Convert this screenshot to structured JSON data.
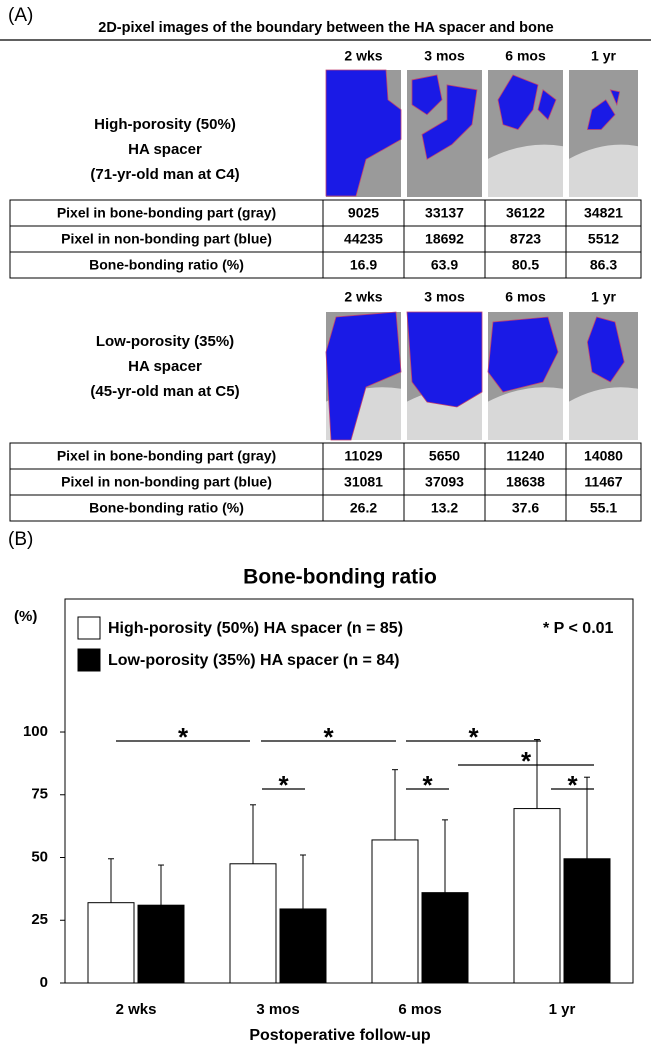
{
  "panel_a": {
    "label": "(A)",
    "title": "2D-pixel images of the boundary between the HA spacer and bone",
    "groups": [
      {
        "columns": [
          "2 wks",
          "3 mos",
          "6 mos",
          "1 yr"
        ],
        "spacer": [
          "High-porosity (50%)",
          "HA spacer",
          "(71-yr-old man at C4)"
        ],
        "rows": [
          [
            "Pixel in bone-bonding part (gray)",
            9025,
            33137,
            36122,
            34821
          ],
          [
            "Pixel in non-bonding part (blue)",
            44235,
            18692,
            8723,
            5512
          ],
          [
            "Bone-bonding ratio (%)",
            16.9,
            63.9,
            80.5,
            86.3
          ]
        ]
      },
      {
        "columns": [
          "2 wks",
          "3 mos",
          "6 mos",
          "1 yr"
        ],
        "spacer": [
          "Low-porosity (35%)",
          "HA spacer",
          "(45-yr-old man at C5)"
        ],
        "rows": [
          [
            "Pixel in bone-bonding part (gray)",
            11029,
            5650,
            11240,
            14080
          ],
          [
            "Pixel in non-bonding part (blue)",
            31081,
            37093,
            18638,
            11467
          ],
          [
            "Bone-bonding ratio (%)",
            26.2,
            13.2,
            37.6,
            55.1
          ]
        ]
      }
    ]
  },
  "chart_data": {
    "type": "bar",
    "label": "(B)",
    "title": "Bone-bonding ratio",
    "ylabel": "(%)",
    "xlabel": "Postoperative follow-up",
    "categories": [
      "2 wks",
      "3 mos",
      "6 mos",
      "1 yr"
    ],
    "series": [
      {
        "name": "High-porosity (50%) HA spacer (n = 85)",
        "color": "#ffffff",
        "values": [
          32,
          47.5,
          57,
          69.5
        ],
        "errors": [
          17.5,
          23.5,
          28,
          27.5
        ]
      },
      {
        "name": "Low-porosity (35%) HA spacer  (n = 84)",
        "color": "#000000",
        "values": [
          31,
          29.5,
          36,
          49.5
        ],
        "errors": [
          16,
          21.5,
          29,
          32.5
        ]
      }
    ],
    "annotation": "* P < 0.01",
    "significance": [
      "*",
      "*",
      "*",
      "*",
      "*",
      "*",
      "*"
    ],
    "ylim": [
      0,
      153
    ],
    "yticks": [
      0,
      25,
      50,
      75,
      100
    ],
    "legend": "upper left"
  }
}
